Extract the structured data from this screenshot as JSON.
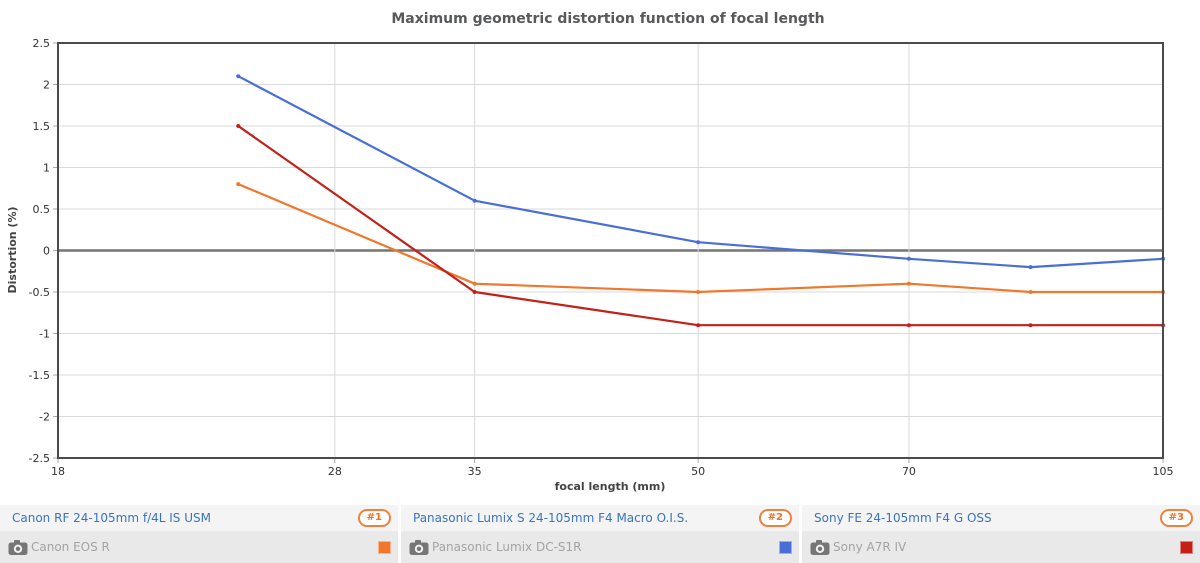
{
  "chart": {
    "title": "Maximum geometric distortion function of focal length",
    "xlabel": "focal length (mm)",
    "ylabel": "Distortion (%)",
    "colors": {
      "grid": "#d9d9d9",
      "zero_line": "#757575",
      "border": "#4b4b4b",
      "tick_mark": "#aaaaaa",
      "tick_text": "#333333",
      "title_text": "#58595b"
    }
  },
  "chart_data": {
    "type": "line",
    "title": "Maximum geometric distortion function of focal length",
    "xlabel": "focal length (mm)",
    "ylabel": "Distortion (%)",
    "x_scale": "log",
    "xlim": [
      18,
      105
    ],
    "ylim": [
      -2.5,
      2.5
    ],
    "x_ticks": [
      18,
      28,
      35,
      50,
      70,
      105
    ],
    "y_ticks": [
      "2.5",
      "2",
      "1.5",
      "1",
      "0.5",
      "0",
      "-0.5",
      "-1",
      "-1.5",
      "-2",
      "-2.5"
    ],
    "grid": true,
    "legend_position": "bottom",
    "x": [
      24,
      35,
      50,
      70,
      85,
      105
    ],
    "series": [
      {
        "name": "Canon RF 24-105mm f/4L IS USM",
        "color": "#f0772c",
        "values": [
          0.8,
          -0.4,
          -0.5,
          -0.4,
          -0.5,
          -0.5
        ]
      },
      {
        "name": "Panasonic Lumix S 24-105mm F4 Macro O.I.S.",
        "color": "#4a6ed7",
        "values": [
          2.1,
          0.6,
          0.1,
          -0.1,
          -0.2,
          -0.1
        ]
      },
      {
        "name": "Sony FE 24-105mm F4 G OSS",
        "color": "#c32017",
        "values": [
          1.5,
          -0.5,
          -0.9,
          -0.9,
          -0.9,
          -0.9
        ]
      }
    ]
  },
  "legend": {
    "items": [
      {
        "lens": "Canon RF 24-105mm f/4L IS USM",
        "rank": "#1",
        "camera": "Canon EOS R",
        "color": "#f0772c"
      },
      {
        "lens": "Panasonic Lumix S 24-105mm F4 Macro O.I.S.",
        "rank": "#2",
        "camera": "Panasonic Lumix DC-S1R",
        "color": "#4a6ed7"
      },
      {
        "lens": "Sony FE 24-105mm F4 G OSS",
        "rank": "#3",
        "camera": "Sony A7R IV",
        "color": "#c32017"
      }
    ]
  }
}
